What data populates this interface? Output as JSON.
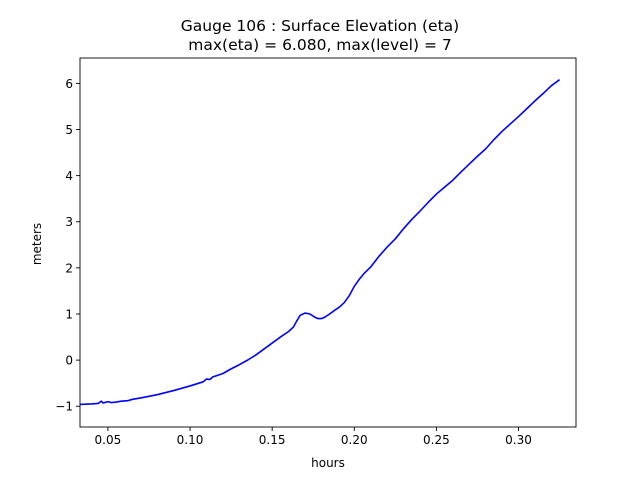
{
  "chart_data": {
    "type": "line",
    "title": "Gauge 106 : Surface Elevation (eta)",
    "subtitle": "max(eta) =   6.080,    max(level) = 7",
    "xlabel": "hours",
    "ylabel": "meters",
    "xlim": [
      0.033,
      0.335
    ],
    "ylim": [
      -1.45,
      6.55
    ],
    "xticks": [
      0.05,
      0.1,
      0.15,
      0.2,
      0.25,
      0.3
    ],
    "xtick_labels": [
      "0.05",
      "0.10",
      "0.15",
      "0.20",
      "0.25",
      "0.30"
    ],
    "yticks": [
      -1,
      0,
      1,
      2,
      3,
      4,
      5,
      6
    ],
    "ytick_labels": [
      "−1",
      "0",
      "1",
      "2",
      "3",
      "4",
      "5",
      "6"
    ],
    "grid": false,
    "series": [
      {
        "color": "#0000ff",
        "x": [
          0.033,
          0.04,
          0.044,
          0.046,
          0.047,
          0.048,
          0.05,
          0.052,
          0.055,
          0.058,
          0.062,
          0.065,
          0.07,
          0.08,
          0.09,
          0.1,
          0.108,
          0.11,
          0.112,
          0.114,
          0.116,
          0.12,
          0.125,
          0.13,
          0.135,
          0.14,
          0.145,
          0.15,
          0.155,
          0.16,
          0.163,
          0.165,
          0.167,
          0.17,
          0.173,
          0.176,
          0.178,
          0.18,
          0.182,
          0.185,
          0.188,
          0.191,
          0.194,
          0.197,
          0.2,
          0.203,
          0.206,
          0.21,
          0.215,
          0.22,
          0.225,
          0.23,
          0.235,
          0.24,
          0.245,
          0.25,
          0.255,
          0.26,
          0.265,
          0.27,
          0.275,
          0.28,
          0.285,
          0.29,
          0.295,
          0.3,
          0.305,
          0.31,
          0.315,
          0.32,
          0.325
        ],
        "y": [
          -0.96,
          -0.95,
          -0.94,
          -0.89,
          -0.93,
          -0.92,
          -0.9,
          -0.92,
          -0.91,
          -0.89,
          -0.88,
          -0.85,
          -0.82,
          -0.75,
          -0.66,
          -0.56,
          -0.47,
          -0.41,
          -0.42,
          -0.36,
          -0.34,
          -0.29,
          -0.19,
          -0.1,
          0.0,
          0.11,
          0.24,
          0.37,
          0.5,
          0.62,
          0.72,
          0.85,
          0.97,
          1.02,
          1.0,
          0.93,
          0.9,
          0.9,
          0.93,
          1.0,
          1.08,
          1.15,
          1.25,
          1.4,
          1.6,
          1.75,
          1.88,
          2.02,
          2.25,
          2.45,
          2.63,
          2.85,
          3.05,
          3.23,
          3.42,
          3.6,
          3.75,
          3.9,
          4.08,
          4.25,
          4.42,
          4.58,
          4.78,
          4.96,
          5.12,
          5.28,
          5.45,
          5.62,
          5.78,
          5.95,
          6.08
        ]
      }
    ]
  }
}
